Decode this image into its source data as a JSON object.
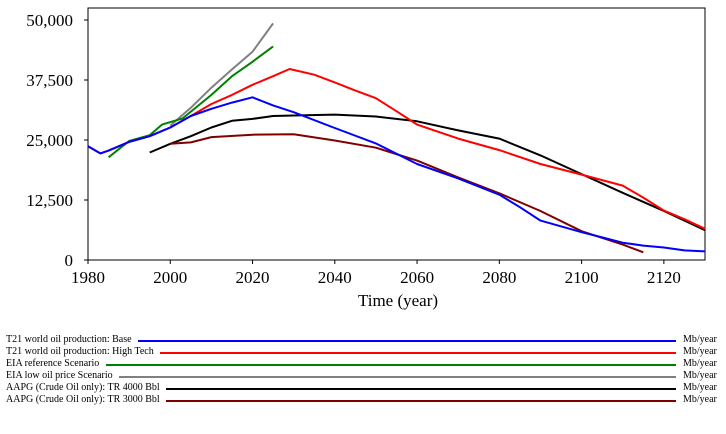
{
  "chart_data": {
    "type": "line",
    "xlabel": "Time (year)",
    "ylabel": "",
    "xlim": [
      1980,
      2130
    ],
    "ylim": [
      0,
      52500
    ],
    "x_ticks": [
      "1980",
      "2000",
      "2020",
      "2040",
      "2060",
      "2080",
      "2100",
      "2120"
    ],
    "x_tick_values": [
      1980,
      2000,
      2020,
      2040,
      2060,
      2080,
      2100,
      2120
    ],
    "y_ticks": [
      "50,000",
      "37,500",
      "25,000",
      "12,500",
      "0"
    ],
    "y_tick_values": [
      50000,
      37500,
      25000,
      12500,
      0
    ],
    "grid": false,
    "legend_position": "bottom",
    "series": [
      {
        "name": "T21 world oil production: Base",
        "unit": "Mb/year",
        "color": "#0000ff",
        "points": [
          [
            1980,
            23700
          ],
          [
            1983,
            22200
          ],
          [
            1985,
            22800
          ],
          [
            1990,
            24600
          ],
          [
            1995,
            25800
          ],
          [
            2000,
            27600
          ],
          [
            2005,
            30000
          ],
          [
            2010,
            31500
          ],
          [
            2015,
            32800
          ],
          [
            2020,
            33900
          ],
          [
            2025,
            32200
          ],
          [
            2030,
            30800
          ],
          [
            2040,
            27500
          ],
          [
            2050,
            24300
          ],
          [
            2060,
            20000
          ],
          [
            2070,
            17000
          ],
          [
            2080,
            13600
          ],
          [
            2085,
            11000
          ],
          [
            2090,
            8200
          ],
          [
            2100,
            5800
          ],
          [
            2105,
            4700
          ],
          [
            2110,
            3600
          ],
          [
            2115,
            3000
          ],
          [
            2120,
            2600
          ],
          [
            2125,
            2000
          ],
          [
            2130,
            1800
          ]
        ]
      },
      {
        "name": "T21 world oil production: High Tech",
        "unit": "Mb/year",
        "color": "#ff0000",
        "points": [
          [
            1980,
            23700
          ],
          [
            1983,
            22200
          ],
          [
            1985,
            22800
          ],
          [
            1990,
            24600
          ],
          [
            1995,
            25800
          ],
          [
            2000,
            27600
          ],
          [
            2005,
            30000
          ],
          [
            2010,
            32500
          ],
          [
            2015,
            34400
          ],
          [
            2020,
            36500
          ],
          [
            2025,
            38300
          ],
          [
            2029,
            39800
          ],
          [
            2035,
            38600
          ],
          [
            2040,
            37000
          ],
          [
            2045,
            35300
          ],
          [
            2050,
            33700
          ],
          [
            2055,
            31000
          ],
          [
            2060,
            28200
          ],
          [
            2070,
            25300
          ],
          [
            2080,
            22900
          ],
          [
            2090,
            20000
          ],
          [
            2100,
            17800
          ],
          [
            2110,
            15500
          ],
          [
            2115,
            13000
          ],
          [
            2120,
            10300
          ],
          [
            2125,
            8500
          ],
          [
            2130,
            6500
          ]
        ]
      },
      {
        "name": "EIA reference Scenario",
        "unit": "Mb/year",
        "color": "#008000",
        "points": [
          [
            1985,
            21400
          ],
          [
            1990,
            24800
          ],
          [
            1995,
            26000
          ],
          [
            1998,
            28200
          ],
          [
            2003,
            29500
          ],
          [
            2010,
            34400
          ],
          [
            2015,
            38300
          ],
          [
            2020,
            41300
          ],
          [
            2025,
            44500
          ]
        ]
      },
      {
        "name": "EIA low oil price Scenario",
        "unit": "Mb/year",
        "color": "#808080",
        "points": [
          [
            2000,
            28000
          ],
          [
            2005,
            31700
          ],
          [
            2010,
            35900
          ],
          [
            2015,
            39700
          ],
          [
            2020,
            43400
          ],
          [
            2025,
            49300
          ]
        ]
      },
      {
        "name": "AAPG (Crude Oil only): TR 4000 Bbl",
        "unit": "Mb/year",
        "color": "#000000",
        "points": [
          [
            1995,
            22400
          ],
          [
            2000,
            24200
          ],
          [
            2005,
            25800
          ],
          [
            2010,
            27600
          ],
          [
            2015,
            29000
          ],
          [
            2020,
            29400
          ],
          [
            2025,
            30000
          ],
          [
            2030,
            30100
          ],
          [
            2040,
            30300
          ],
          [
            2050,
            29900
          ],
          [
            2060,
            28900
          ],
          [
            2070,
            27000
          ],
          [
            2080,
            25300
          ],
          [
            2090,
            21800
          ],
          [
            2100,
            17900
          ],
          [
            2110,
            14000
          ],
          [
            2120,
            10200
          ],
          [
            2130,
            6200
          ]
        ]
      },
      {
        "name": "AAPG (Crude Oil only): TR 3000 Bbl",
        "unit": "Mb/year",
        "color": "#800000",
        "points": [
          [
            2000,
            24200
          ],
          [
            2005,
            24500
          ],
          [
            2010,
            25600
          ],
          [
            2020,
            26100
          ],
          [
            2030,
            26200
          ],
          [
            2040,
            24900
          ],
          [
            2050,
            23400
          ],
          [
            2060,
            20700
          ],
          [
            2070,
            17200
          ],
          [
            2080,
            13900
          ],
          [
            2090,
            10200
          ],
          [
            2100,
            6000
          ],
          [
            2110,
            3200
          ],
          [
            2115,
            1600
          ]
        ]
      }
    ]
  }
}
